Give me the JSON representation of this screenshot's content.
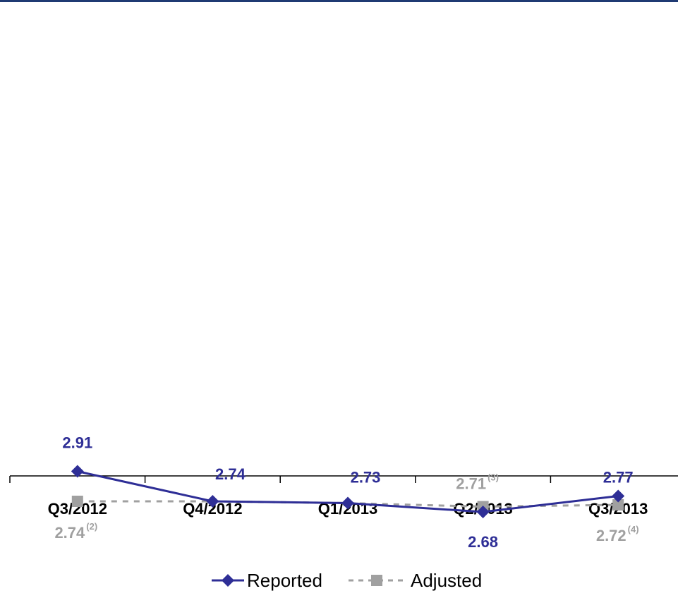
{
  "colors": {
    "reported": "#2e2e96",
    "adjusted": "#a0a0a0",
    "top_rule": "#1f3a73",
    "axis": "#000000"
  },
  "chart_data": {
    "type": "line",
    "categories": [
      "Q3/2012",
      "Q4/2012",
      "Q1/2013",
      "Q2/2013",
      "Q3/2013"
    ],
    "ylim": [
      2.45,
      3.05
    ],
    "grid": false,
    "legend_position": "bottom-center",
    "series": [
      {
        "name": "Reported",
        "marker": "diamond",
        "line_style": "solid",
        "values": [
          2.91,
          2.74,
          2.73,
          2.68,
          2.77
        ],
        "labels": [
          "2.91",
          "2.74",
          "2.73",
          "2.68",
          "2.77"
        ]
      },
      {
        "name": "Adjusted",
        "marker": "square",
        "line_style": "dashed",
        "values": [
          2.74,
          2.74,
          2.73,
          2.71,
          2.72
        ],
        "labels": [
          "2.74",
          "",
          "",
          "2.71",
          "2.72"
        ],
        "notes": [
          "(2)",
          "",
          "",
          "(3)",
          "(4)"
        ]
      }
    ]
  }
}
